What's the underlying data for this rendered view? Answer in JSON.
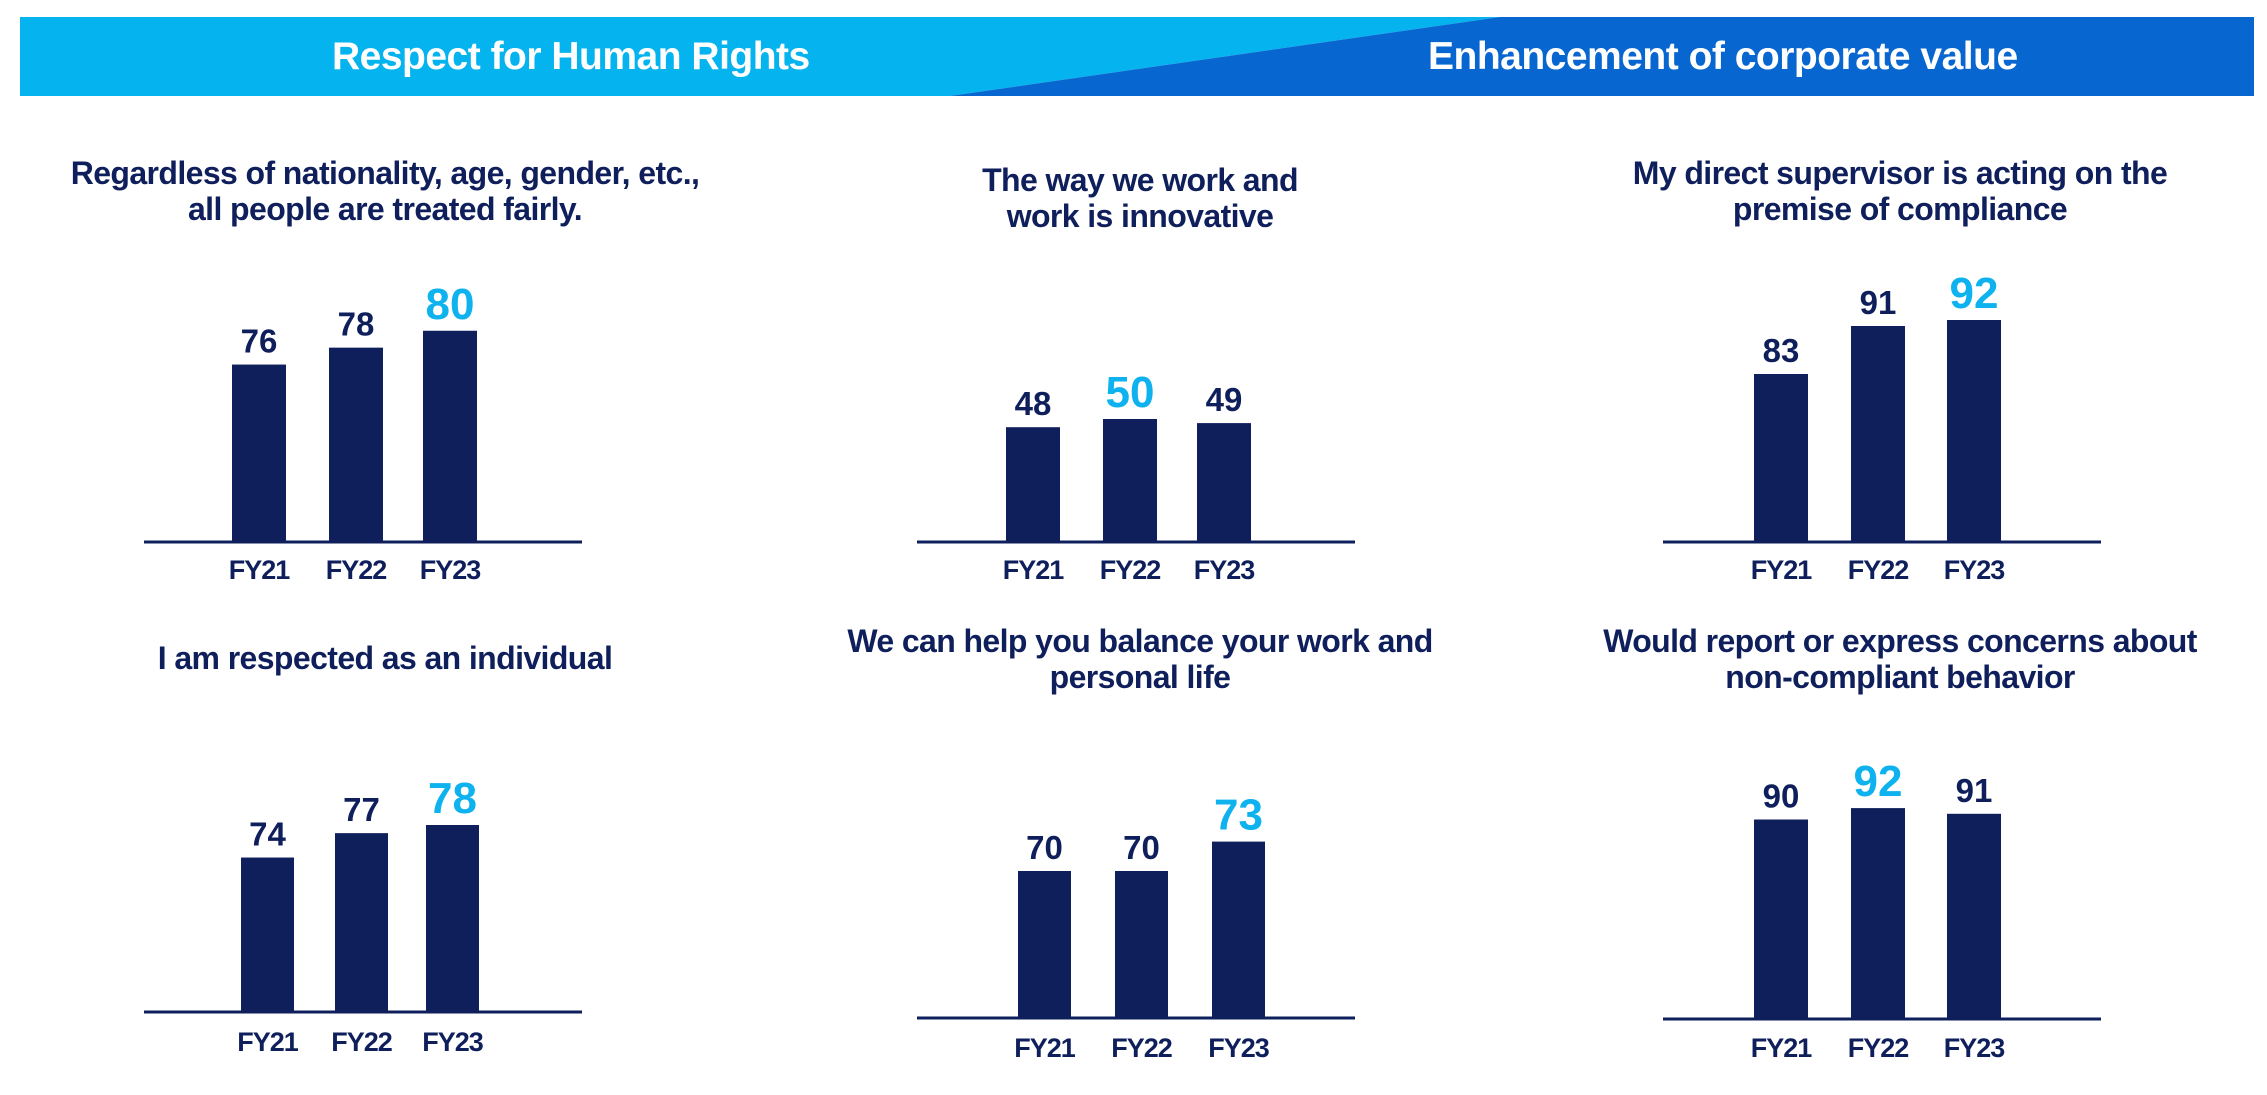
{
  "colors": {
    "banner_light": "#05b3ef",
    "banner_dark": "#0866d0",
    "bar": "#0f1f5c",
    "highlight_label": "#0db2ee",
    "label": "#0f1f5c"
  },
  "banner": {
    "left_title": "Respect for Human Rights",
    "right_title": "Enhancement of corporate value"
  },
  "chart_data": [
    {
      "type": "bar",
      "title": "Regardless of nationality, age, gender, etc., all people are treated fairly.",
      "title_lines": [
        "Regardless of nationality, age, gender, etc.,",
        "all people are treated fairly."
      ],
      "categories": [
        "FY21",
        "FY22",
        "FY23"
      ],
      "values": [
        76,
        78,
        80
      ],
      "highlight": "FY23"
    },
    {
      "type": "bar",
      "title": "The way we work and work is innovative",
      "title_lines": [
        "The way we work and",
        "work is innovative"
      ],
      "categories": [
        "FY21",
        "FY22",
        "FY23"
      ],
      "values": [
        48,
        50,
        49
      ],
      "highlight": "FY22"
    },
    {
      "type": "bar",
      "title": "My direct supervisor is acting on the premise of compliance",
      "title_lines": [
        "My direct supervisor is acting on the",
        "premise of compliance"
      ],
      "categories": [
        "FY21",
        "FY22",
        "FY23"
      ],
      "values": [
        83,
        91,
        92
      ],
      "highlight": "FY23"
    },
    {
      "type": "bar",
      "title": "I am respected as an individual",
      "title_lines": [
        "I am respected as an individual"
      ],
      "categories": [
        "FY21",
        "FY22",
        "FY23"
      ],
      "values": [
        74,
        77,
        78
      ],
      "highlight": "FY23"
    },
    {
      "type": "bar",
      "title": "We can help you balance your work and personal life",
      "title_lines": [
        "We can help you balance your work and",
        "personal life"
      ],
      "categories": [
        "FY21",
        "FY22",
        "FY23"
      ],
      "values": [
        70,
        70,
        73
      ],
      "highlight": "FY23"
    },
    {
      "type": "bar",
      "title": "Would report or express concerns about non-compliant behavior",
      "title_lines": [
        "Would report or express concerns about",
        "non-compliant behavior"
      ],
      "categories": [
        "FY21",
        "FY22",
        "FY23"
      ],
      "values": [
        90,
        92,
        91
      ],
      "highlight": "FY22"
    }
  ]
}
